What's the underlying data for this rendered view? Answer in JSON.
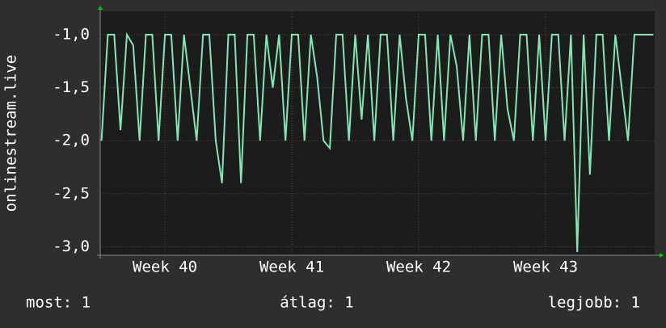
{
  "chart_data": {
    "type": "line",
    "ylabel": "onlinestream.live",
    "xlim": [
      39.49,
      43.86
    ],
    "ylim": [
      -3.08,
      -0.78
    ],
    "xticks": [
      {
        "value": 40,
        "label": "Week 40"
      },
      {
        "value": 41,
        "label": "Week 41"
      },
      {
        "value": 42,
        "label": "Week 42"
      },
      {
        "value": 43,
        "label": "Week 43"
      }
    ],
    "yticks": [
      {
        "value": -1,
        "label": "-1,0"
      },
      {
        "value": -1.5,
        "label": "-1,5"
      },
      {
        "value": -2,
        "label": "-2,0"
      },
      {
        "value": -2.5,
        "label": "-2,5"
      },
      {
        "value": -3,
        "label": "-3,0"
      }
    ],
    "grid": true,
    "x": [
      39.5,
      39.55,
      39.6,
      39.65,
      39.7,
      39.75,
      39.8,
      39.85,
      39.9,
      39.95,
      40,
      40.05,
      40.1,
      40.15,
      40.2,
      40.25,
      40.3,
      40.35,
      40.4,
      40.45,
      40.5,
      40.55,
      40.6,
      40.65,
      40.7,
      40.75,
      40.8,
      40.85,
      40.9,
      40.95,
      41,
      41.05,
      41.1,
      41.15,
      41.2,
      41.25,
      41.3,
      41.35,
      41.4,
      41.45,
      41.5,
      41.55,
      41.6,
      41.65,
      41.7,
      41.75,
      41.8,
      41.85,
      41.9,
      41.95,
      42,
      42.05,
      42.1,
      42.15,
      42.2,
      42.25,
      42.3,
      42.35,
      42.4,
      42.45,
      42.5,
      42.55,
      42.6,
      42.65,
      42.7,
      42.75,
      42.8,
      42.85,
      42.9,
      42.95,
      43,
      43.05,
      43.1,
      43.15,
      43.2,
      43.25,
      43.3,
      43.35,
      43.4,
      43.45,
      43.5,
      43.55,
      43.6,
      43.65,
      43.7,
      43.75,
      43.8,
      43.85
    ],
    "series": [
      {
        "color": "#7fe8b4",
        "values": [
          -2,
          -1,
          -1,
          -1.9,
          -1,
          -1.1,
          -2,
          -1,
          -1,
          -2,
          -1,
          -1,
          -2,
          -1,
          -1.5,
          -2,
          -1,
          -1,
          -2,
          -2.4,
          -1,
          -1,
          -2.4,
          -1,
          -1,
          -2,
          -1,
          -1.5,
          -1,
          -2,
          -1,
          -1,
          -2,
          -1,
          -1.4,
          -2,
          -2.07,
          -1,
          -1,
          -2,
          -1,
          -1.8,
          -1,
          -2,
          -1,
          -1,
          -2,
          -1,
          -1.6,
          -2,
          -1,
          -1,
          -2,
          -1,
          -2,
          -1,
          -1.3,
          -2,
          -1,
          -2,
          -1,
          -1,
          -2,
          -1,
          -1.7,
          -2,
          -1,
          -1,
          -2,
          -1,
          -2,
          -1,
          -1,
          -2,
          -1,
          -3.05,
          -1,
          -2.32,
          -1,
          -1,
          -2,
          -1,
          -1.5,
          -2,
          -1,
          -1,
          -1,
          -1
        ]
      }
    ],
    "annotations": [
      "most: 1",
      "átlag: 1",
      "legjobb: 1"
    ]
  }
}
